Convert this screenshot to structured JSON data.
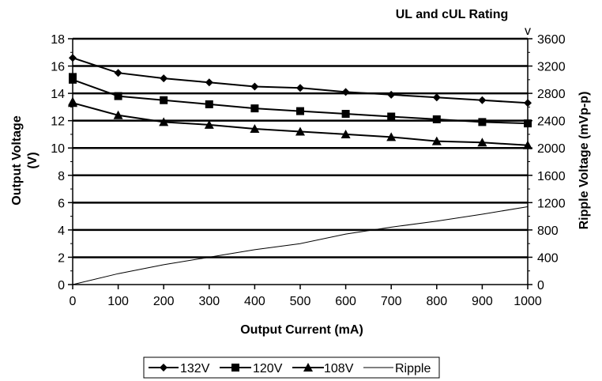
{
  "chart_data": {
    "type": "line",
    "title": "UL and cUL Rating",
    "xlabel": "Output Current (mA)",
    "ylabel": "Output Voltage (V)",
    "ylabel_lines": [
      "Output Voltage",
      "(V)"
    ],
    "y2label": "Ripple Voltage (mVp-p)",
    "y2_corner_unit": "v",
    "xlim": [
      0,
      1000
    ],
    "ylim": [
      0,
      18
    ],
    "y2lim": [
      0,
      3600
    ],
    "x_ticks": [
      "0",
      "100",
      "200",
      "300",
      "400",
      "500",
      "600",
      "700",
      "800",
      "900",
      "1000"
    ],
    "y_ticks": [
      "0",
      "2",
      "4",
      "6",
      "8",
      "10",
      "12",
      "14",
      "16",
      "18"
    ],
    "y2_ticks": [
      "0",
      "400",
      "800",
      "1200",
      "1600",
      "2000",
      "2400",
      "2800",
      "3200",
      "3600"
    ],
    "grid": "horizontal",
    "legend_position": "bottom",
    "x": [
      0,
      100,
      200,
      300,
      400,
      500,
      600,
      700,
      800,
      900,
      1000
    ],
    "series": [
      {
        "name": "132V",
        "axis": "left",
        "marker": "diamond",
        "color": "#000000",
        "values": [
          16.6,
          15.5,
          15.1,
          14.8,
          14.5,
          14.4,
          14.1,
          13.9,
          13.7,
          13.5,
          13.3
        ]
      },
      {
        "name": "120V",
        "axis": "left",
        "marker": "square",
        "color": "#000000",
        "start_values": [
          15.2,
          15.0
        ],
        "values": [
          15.0,
          13.8,
          13.5,
          13.2,
          12.9,
          12.7,
          12.5,
          12.3,
          12.1,
          11.9,
          11.8
        ]
      },
      {
        "name": "108V",
        "axis": "left",
        "marker": "triangle",
        "color": "#000000",
        "start_values": [
          13.4,
          13.3
        ],
        "values": [
          13.3,
          12.4,
          11.9,
          11.7,
          11.4,
          11.2,
          11.0,
          10.8,
          10.5,
          10.4,
          10.2
        ]
      },
      {
        "name": "Ripple",
        "axis": "right",
        "marker": "none",
        "color": "#000000",
        "values": [
          0,
          160,
          290,
          400,
          510,
          600,
          740,
          840,
          930,
          1030,
          1140
        ]
      }
    ]
  }
}
